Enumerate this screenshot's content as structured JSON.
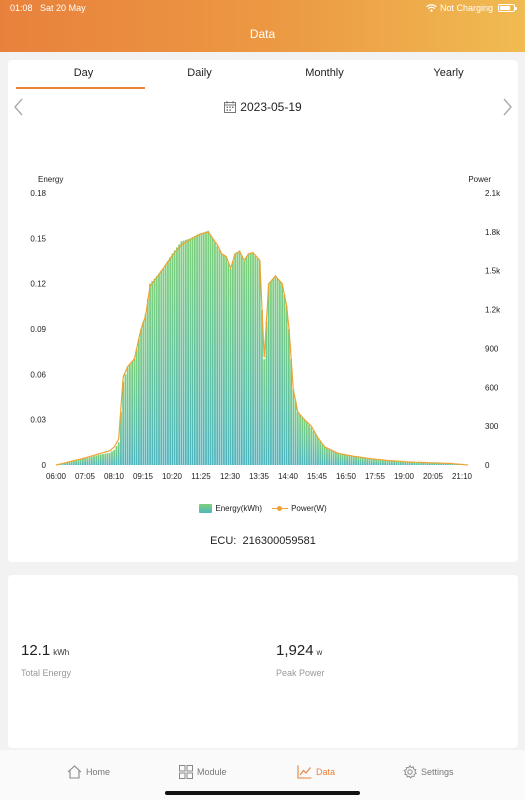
{
  "status_bar": {
    "time": "01:08",
    "date": "Sat 20 May",
    "charging": "Not Charging",
    "battery_level": 0.8
  },
  "header": {
    "title": "Data"
  },
  "tabs": [
    {
      "label": "Day",
      "active": true
    },
    {
      "label": "Daily",
      "active": false
    },
    {
      "label": "Monthly",
      "active": false
    },
    {
      "label": "Yearly",
      "active": false
    }
  ],
  "date_nav": {
    "date": "2023-05-19"
  },
  "legend": {
    "energy": "Energy(kWh)",
    "power": "Power(W)"
  },
  "ecu": {
    "label": "ECU:",
    "value": "216300059581"
  },
  "stats": {
    "total_energy": {
      "value": "12.1",
      "unit": "kWh",
      "label": "Total Energy"
    },
    "peak_power": {
      "value": "1,924",
      "unit": "w",
      "label": "Peak Power"
    }
  },
  "tabbar": [
    {
      "label": "Home",
      "icon": "home-icon",
      "active": false
    },
    {
      "label": "Module",
      "icon": "grid-icon",
      "active": false
    },
    {
      "label": "Data",
      "icon": "chart-icon",
      "active": true
    },
    {
      "label": "Settings",
      "icon": "gear-icon",
      "active": false
    }
  ],
  "colors": {
    "accent": "#e8813c",
    "energy_top": "#7ed07a",
    "energy_bottom": "#4fb5bf",
    "power_line": "#f0a233"
  },
  "chart_data": {
    "type": "bar",
    "ylabel_left": "Energy",
    "ylabel_right": "Power",
    "yticks_left": [
      "0",
      "0.03",
      "0.06",
      "0.09",
      "0.12",
      "0.15",
      "0.18"
    ],
    "yticks_right": [
      "0",
      "300",
      "600",
      "900",
      "1.2k",
      "1.5k",
      "1.8k",
      "2.1k"
    ],
    "xticks": [
      "06:00",
      "07:05",
      "08:10",
      "09:15",
      "10:20",
      "11:25",
      "12:30",
      "13:35",
      "14:40",
      "15:45",
      "16:50",
      "17:55",
      "19:00",
      "20:05",
      "21:10"
    ],
    "ylim_left": [
      0,
      0.18
    ],
    "ylim_right": [
      0,
      2100
    ],
    "x_start_min": 360,
    "x_end_min": 1280,
    "interval_min": 5,
    "series": [
      {
        "name": "Energy(kWh)",
        "axis": "left",
        "profile": [
          [
            360,
            0
          ],
          [
            420,
            0.004
          ],
          [
            460,
            0.007
          ],
          [
            480,
            0.008
          ],
          [
            490,
            0.01
          ],
          [
            500,
            0.015
          ],
          [
            510,
            0.055
          ],
          [
            520,
            0.065
          ],
          [
            535,
            0.07
          ],
          [
            550,
            0.09
          ],
          [
            560,
            0.1
          ],
          [
            570,
            0.12
          ],
          [
            585,
            0.125
          ],
          [
            600,
            0.13
          ],
          [
            620,
            0.14
          ],
          [
            640,
            0.148
          ],
          [
            660,
            0.15
          ],
          [
            680,
            0.153
          ],
          [
            700,
            0.155
          ],
          [
            720,
            0.145
          ],
          [
            730,
            0.14
          ],
          [
            740,
            0.138
          ],
          [
            750,
            0.13
          ],
          [
            760,
            0.14
          ],
          [
            770,
            0.142
          ],
          [
            780,
            0.135
          ],
          [
            790,
            0.14
          ],
          [
            800,
            0.14
          ],
          [
            815,
            0.135
          ],
          [
            825,
            0.07
          ],
          [
            835,
            0.12
          ],
          [
            850,
            0.125
          ],
          [
            865,
            0.12
          ],
          [
            875,
            0.105
          ],
          [
            880,
            0.09
          ],
          [
            885,
            0.07
          ],
          [
            890,
            0.05
          ],
          [
            900,
            0.035
          ],
          [
            915,
            0.03
          ],
          [
            930,
            0.025
          ],
          [
            945,
            0.018
          ],
          [
            960,
            0.012
          ],
          [
            990,
            0.008
          ],
          [
            1020,
            0.006
          ],
          [
            1060,
            0.004
          ],
          [
            1100,
            0.003
          ],
          [
            1150,
            0.002
          ],
          [
            1240,
            0.001
          ],
          [
            1280,
            0
          ]
        ]
      },
      {
        "name": "Power(W)",
        "axis": "right",
        "profile": [
          [
            360,
            0
          ],
          [
            420,
            50
          ],
          [
            460,
            90
          ],
          [
            480,
            110
          ],
          [
            490,
            140
          ],
          [
            500,
            200
          ],
          [
            510,
            680
          ],
          [
            520,
            760
          ],
          [
            535,
            820
          ],
          [
            550,
            1050
          ],
          [
            560,
            1150
          ],
          [
            570,
            1380
          ],
          [
            585,
            1450
          ],
          [
            600,
            1520
          ],
          [
            620,
            1620
          ],
          [
            640,
            1700
          ],
          [
            660,
            1740
          ],
          [
            680,
            1780
          ],
          [
            700,
            1800
          ],
          [
            720,
            1700
          ],
          [
            730,
            1630
          ],
          [
            740,
            1610
          ],
          [
            750,
            1520
          ],
          [
            760,
            1630
          ],
          [
            770,
            1650
          ],
          [
            780,
            1580
          ],
          [
            790,
            1630
          ],
          [
            800,
            1640
          ],
          [
            815,
            1580
          ],
          [
            825,
            830
          ],
          [
            835,
            1400
          ],
          [
            850,
            1460
          ],
          [
            865,
            1400
          ],
          [
            875,
            1230
          ],
          [
            880,
            1060
          ],
          [
            885,
            830
          ],
          [
            890,
            580
          ],
          [
            900,
            410
          ],
          [
            915,
            350
          ],
          [
            930,
            300
          ],
          [
            945,
            210
          ],
          [
            960,
            140
          ],
          [
            990,
            90
          ],
          [
            1020,
            70
          ],
          [
            1060,
            50
          ],
          [
            1100,
            35
          ],
          [
            1150,
            23
          ],
          [
            1240,
            12
          ],
          [
            1280,
            0
          ]
        ]
      }
    ]
  }
}
